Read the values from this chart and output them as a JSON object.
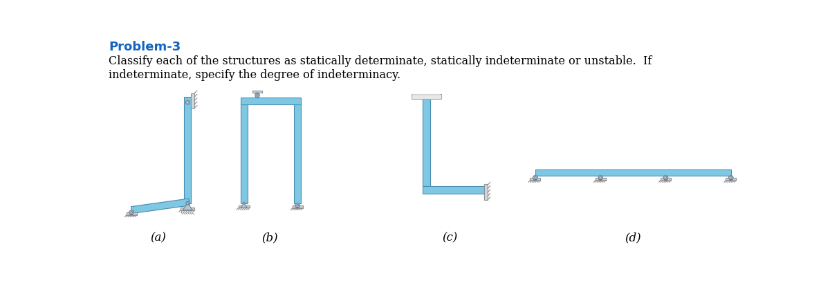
{
  "title": "Problem-3",
  "title_color": "#1565C0",
  "title_fontsize": 13,
  "body_text1": "Classify each of the structures as statically determinate, statically indeterminate or unstable.  If",
  "body_text2": "indeterminate, specify the degree of indeterminacy.",
  "body_fontsize": 11.5,
  "labels": [
    "(a)",
    "(b)",
    "(c)",
    "(d)"
  ],
  "label_fontsize": 12,
  "bg_color": "#ffffff",
  "beam_color_light": "#a8d8ea",
  "beam_color_mid": "#7EC8E3",
  "beam_color_dark": "#5BA3C9",
  "beam_edge": "#4a8ab0",
  "support_base_color": "#c8c8c8",
  "support_edge": "#888888",
  "pin_body_color": "#b0c8d8",
  "pin_edge": "#708090",
  "wall_color": "#d0d8e0",
  "wall_edge": "#909090",
  "hatch_color": "#909090",
  "ground_color": "#d0d0d0",
  "ground_edge": "#909090"
}
